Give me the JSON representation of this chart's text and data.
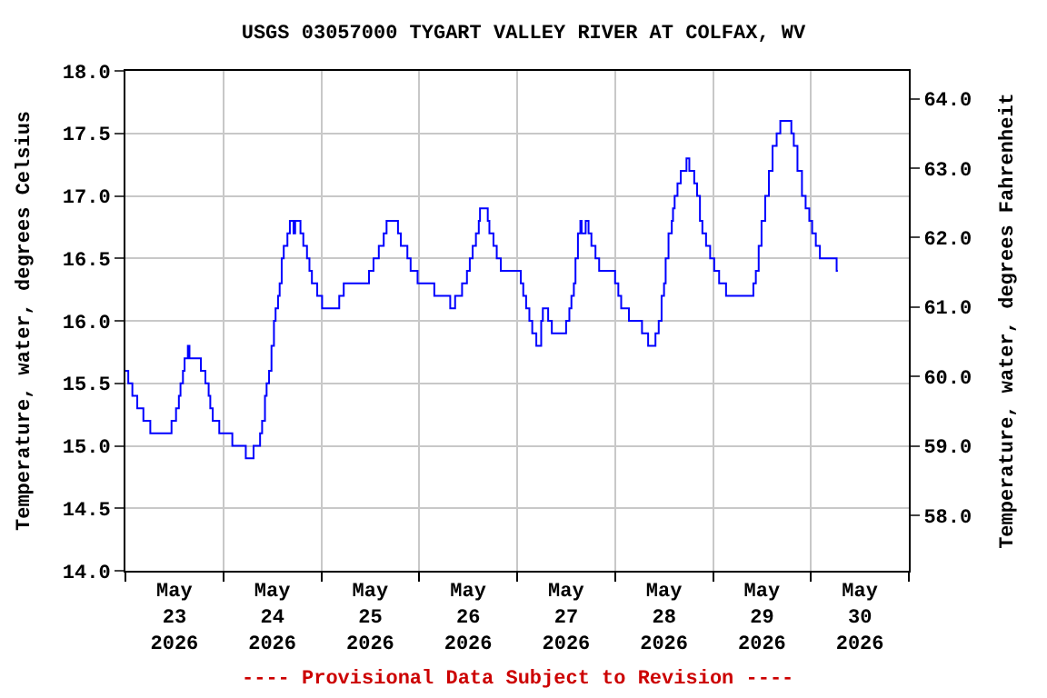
{
  "chart_data": {
    "type": "step",
    "title": "USGS 03057000 TYGART VALLEY RIVER AT COLFAX, WV",
    "ylabel": "Temperature, water, degrees Celsius",
    "y2label": "Temperature, water, degrees Fahrenheit",
    "annotations": [
      "---- Provisional Data Subject to Revision ----"
    ],
    "x": [
      "2026-05-23T00:00",
      "2026-05-23T00:42",
      "2026-05-23T01:42",
      "2026-05-23T02:54",
      "2026-05-23T04:24",
      "2026-05-23T06:06",
      "2026-05-23T11:18",
      "2026-05-23T12:24",
      "2026-05-23T13:06",
      "2026-05-23T13:30",
      "2026-05-23T14:06",
      "2026-05-23T14:30",
      "2026-05-23T15:18",
      "2026-05-23T15:42",
      "2026-05-23T18:30",
      "2026-05-23T19:36",
      "2026-05-23T20:24",
      "2026-05-23T20:48",
      "2026-05-23T21:24",
      "2026-05-23T23:00",
      "2026-05-24T02:12",
      "2026-05-24T05:30",
      "2026-05-24T07:24",
      "2026-05-24T09:00",
      "2026-05-24T09:30",
      "2026-05-24T10:12",
      "2026-05-24T10:36",
      "2026-05-24T11:12",
      "2026-05-24T11:48",
      "2026-05-24T12:24",
      "2026-05-24T12:48",
      "2026-05-24T13:24",
      "2026-05-24T13:48",
      "2026-05-24T14:18",
      "2026-05-24T14:48",
      "2026-05-24T15:42",
      "2026-05-24T16:18",
      "2026-05-24T17:12",
      "2026-05-24T17:36",
      "2026-05-24T18:54",
      "2026-05-24T19:36",
      "2026-05-24T20:30",
      "2026-05-24T21:06",
      "2026-05-24T21:42",
      "2026-05-24T23:00",
      "2026-05-25T00:12",
      "2026-05-25T04:24",
      "2026-05-25T05:30",
      "2026-05-25T11:42",
      "2026-05-25T12:48",
      "2026-05-25T14:06",
      "2026-05-25T15:18",
      "2026-05-25T16:00",
      "2026-05-25T18:48",
      "2026-05-25T19:30",
      "2026-05-25T21:06",
      "2026-05-25T21:54",
      "2026-05-25T23:36",
      "2026-05-26T03:42",
      "2026-05-26T07:36",
      "2026-05-26T08:48",
      "2026-05-26T10:30",
      "2026-05-26T11:42",
      "2026-05-26T12:24",
      "2026-05-26T13:06",
      "2026-05-26T13:54",
      "2026-05-26T14:36",
      "2026-05-26T14:54",
      "2026-05-26T16:48",
      "2026-05-26T17:12",
      "2026-05-26T18:12",
      "2026-05-26T19:00",
      "2026-05-26T20:00",
      "2026-05-27T00:54",
      "2026-05-27T01:30",
      "2026-05-27T02:12",
      "2026-05-27T03:00",
      "2026-05-27T03:42",
      "2026-05-27T04:42",
      "2026-05-27T05:54",
      "2026-05-27T06:18",
      "2026-05-27T07:36",
      "2026-05-27T08:30",
      "2026-05-27T12:00",
      "2026-05-27T12:48",
      "2026-05-27T13:18",
      "2026-05-27T13:54",
      "2026-05-27T14:18",
      "2026-05-27T14:54",
      "2026-05-27T15:30",
      "2026-05-27T15:48",
      "2026-05-27T16:48",
      "2026-05-27T17:30",
      "2026-05-27T18:12",
      "2026-05-27T19:12",
      "2026-05-27T20:06",
      "2026-05-28T00:00",
      "2026-05-28T00:48",
      "2026-05-28T01:30",
      "2026-05-28T03:24",
      "2026-05-28T06:36",
      "2026-05-28T08:06",
      "2026-05-28T09:54",
      "2026-05-28T10:42",
      "2026-05-28T11:24",
      "2026-05-28T12:00",
      "2026-05-28T12:24",
      "2026-05-28T13:06",
      "2026-05-28T13:54",
      "2026-05-28T14:12",
      "2026-05-28T14:36",
      "2026-05-28T15:18",
      "2026-05-28T16:06",
      "2026-05-28T17:30",
      "2026-05-28T18:12",
      "2026-05-28T19:24",
      "2026-05-28T20:06",
      "2026-05-28T20:48",
      "2026-05-28T21:24",
      "2026-05-28T22:18",
      "2026-05-28T23:18",
      "2026-05-29T00:18",
      "2026-05-29T01:30",
      "2026-05-29T03:12",
      "2026-05-29T09:54",
      "2026-05-29T10:30",
      "2026-05-29T11:12",
      "2026-05-29T11:54",
      "2026-05-29T12:48",
      "2026-05-29T13:42",
      "2026-05-29T14:36",
      "2026-05-29T15:36",
      "2026-05-29T16:30",
      "2026-05-29T19:12",
      "2026-05-29T19:48",
      "2026-05-29T20:42",
      "2026-05-29T21:48",
      "2026-05-29T22:42",
      "2026-05-29T23:36",
      "2026-05-30T00:18",
      "2026-05-30T01:12",
      "2026-05-30T02:12",
      "2026-05-30T06:18",
      "2026-05-30T06:36"
    ],
    "series": [
      {
        "color": "#0000ff",
        "values": [
          15.6,
          15.5,
          15.4,
          15.3,
          15.2,
          15.1,
          15.2,
          15.3,
          15.4,
          15.5,
          15.6,
          15.7,
          15.8,
          15.7,
          15.6,
          15.5,
          15.4,
          15.3,
          15.2,
          15.1,
          15.0,
          14.9,
          15.0,
          15.1,
          15.2,
          15.4,
          15.5,
          15.6,
          15.8,
          16.0,
          16.1,
          16.2,
          16.3,
          16.5,
          16.6,
          16.7,
          16.8,
          16.7,
          16.8,
          16.7,
          16.6,
          16.5,
          16.4,
          16.3,
          16.2,
          16.1,
          16.2,
          16.3,
          16.4,
          16.5,
          16.6,
          16.7,
          16.8,
          16.7,
          16.6,
          16.5,
          16.4,
          16.3,
          16.2,
          16.1,
          16.2,
          16.3,
          16.4,
          16.5,
          16.6,
          16.7,
          16.8,
          16.9,
          16.8,
          16.7,
          16.6,
          16.5,
          16.4,
          16.3,
          16.2,
          16.1,
          16.0,
          15.9,
          15.8,
          16.0,
          16.1,
          16.0,
          15.9,
          16.0,
          16.1,
          16.2,
          16.3,
          16.5,
          16.7,
          16.8,
          16.7,
          16.8,
          16.7,
          16.6,
          16.5,
          16.4,
          16.3,
          16.2,
          16.1,
          16.0,
          15.9,
          15.8,
          15.9,
          16.0,
          16.2,
          16.3,
          16.5,
          16.7,
          16.8,
          16.9,
          17.0,
          17.1,
          17.2,
          17.3,
          17.2,
          17.1,
          17.0,
          16.8,
          16.7,
          16.6,
          16.5,
          16.4,
          16.3,
          16.2,
          16.3,
          16.4,
          16.6,
          16.8,
          17.0,
          17.2,
          17.4,
          17.5,
          17.6,
          17.5,
          17.4,
          17.2,
          17.0,
          16.9,
          16.8,
          16.7,
          16.6,
          16.5,
          16.4,
          16.4
        ]
      }
    ],
    "xlim": [
      "2026-05-23T00:00",
      "2026-05-31T00:00"
    ],
    "xticks": [
      {
        "value": "2026-05-23T12:00",
        "label": "May\n23\n2026"
      },
      {
        "value": "2026-05-24T12:00",
        "label": "May\n24\n2026"
      },
      {
        "value": "2026-05-25T12:00",
        "label": "May\n25\n2026"
      },
      {
        "value": "2026-05-26T12:00",
        "label": "May\n26\n2026"
      },
      {
        "value": "2026-05-27T12:00",
        "label": "May\n27\n2026"
      },
      {
        "value": "2026-05-28T12:00",
        "label": "May\n28\n2026"
      },
      {
        "value": "2026-05-29T12:00",
        "label": "May\n29\n2026"
      },
      {
        "value": "2026-05-30T12:00",
        "label": "May\n30\n2026"
      }
    ],
    "ylim": [
      14.0,
      18.0
    ],
    "yticks": [
      {
        "value": 14,
        "label": "14.0"
      },
      {
        "value": 14.5,
        "label": "14.5"
      },
      {
        "value": 15,
        "label": "15.0"
      },
      {
        "value": 15.5,
        "label": "15.5"
      },
      {
        "value": 16,
        "label": "16.0"
      },
      {
        "value": 16.5,
        "label": "16.5"
      },
      {
        "value": 17,
        "label": "17.0"
      },
      {
        "value": 17.5,
        "label": "17.5"
      },
      {
        "value": 18,
        "label": "18.0"
      }
    ],
    "y2lim": [
      57.2,
      64.4
    ],
    "y2ticks": [
      {
        "value": 58,
        "label": "58.0"
      },
      {
        "value": 59,
        "label": "59.0"
      },
      {
        "value": 60,
        "label": "60.0"
      },
      {
        "value": 61,
        "label": "61.0"
      },
      {
        "value": 62,
        "label": "62.0"
      },
      {
        "value": 63,
        "label": "63.0"
      },
      {
        "value": 64,
        "label": "64.0"
      }
    ],
    "grid": true
  }
}
